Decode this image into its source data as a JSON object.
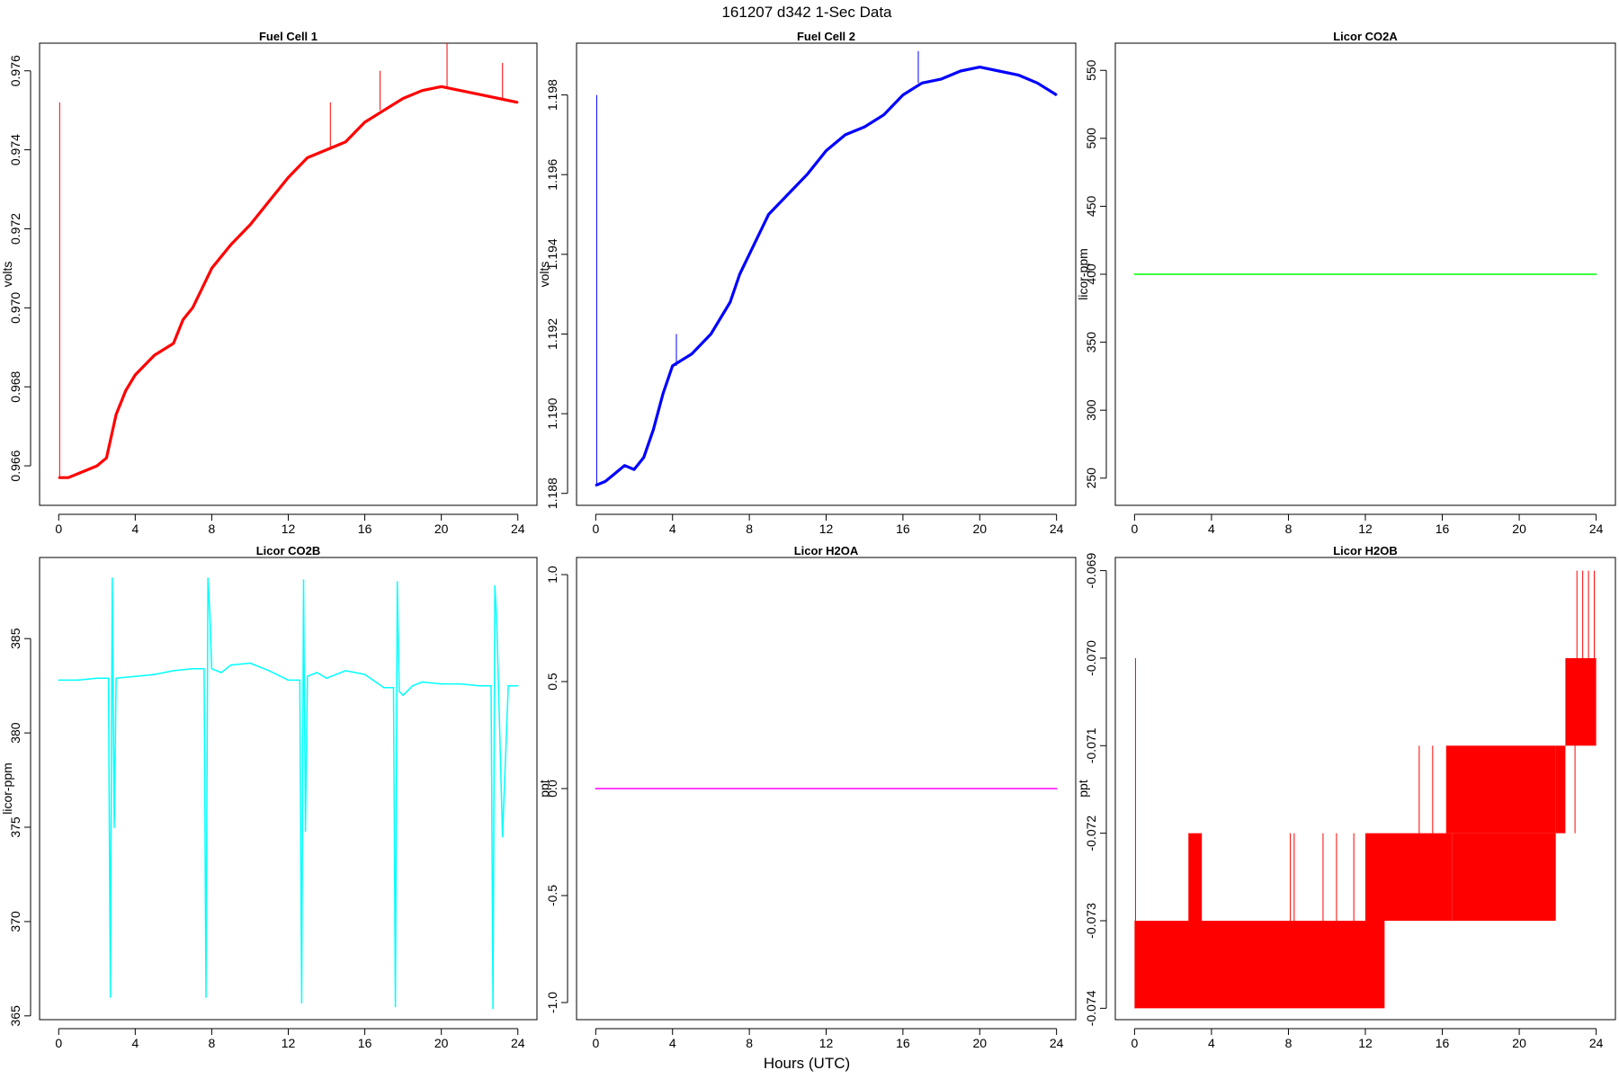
{
  "figure": {
    "title": "161207   d342   1-Sec Data",
    "xlabel": "Hours (UTC)"
  },
  "chart_data": [
    {
      "type": "line",
      "title": "Fuel Cell 1",
      "ylabel": "volts",
      "color": "#ff0000",
      "xlim": [
        -1,
        25
      ],
      "ylim": [
        0.965,
        0.9767
      ],
      "xticks": [
        0,
        4,
        8,
        12,
        16,
        20,
        24
      ],
      "yticks": [
        0.966,
        0.968,
        0.97,
        0.972,
        0.974,
        0.976
      ],
      "ytick_labels": [
        "0.966",
        "0.968",
        "0.970",
        "0.972",
        "0.974",
        "0.976"
      ],
      "x": [
        0.0,
        0.5,
        1.0,
        1.5,
        2.0,
        2.5,
        3.0,
        3.5,
        4.0,
        5.0,
        6.0,
        6.5,
        7.0,
        7.5,
        8.0,
        9.0,
        10.0,
        11.0,
        12.0,
        13.0,
        14.0,
        15.0,
        16.0,
        17.0,
        18.0,
        19.0,
        20.0,
        21.0,
        22.0,
        23.0,
        24.0
      ],
      "y": [
        0.9657,
        0.9657,
        0.9658,
        0.9659,
        0.966,
        0.9662,
        0.9673,
        0.9679,
        0.9683,
        0.9688,
        0.9691,
        0.9697,
        0.97,
        0.9705,
        0.971,
        0.9716,
        0.9721,
        0.9727,
        0.9733,
        0.9738,
        0.974,
        0.9742,
        0.9747,
        0.975,
        0.9753,
        0.9755,
        0.9756,
        0.9755,
        0.9754,
        0.9753,
        0.9752
      ],
      "spikes": [
        [
          0.05,
          0.9752
        ],
        [
          14.2,
          0.9752
        ],
        [
          16.8,
          0.976
        ],
        [
          20.3,
          0.9767
        ],
        [
          23.2,
          0.9762
        ]
      ]
    },
    {
      "type": "line",
      "title": "Fuel Cell 2",
      "ylabel": "volts",
      "color": "#0000ff",
      "xlim": [
        -1,
        25
      ],
      "ylim": [
        1.1877,
        1.1993
      ],
      "xticks": [
        0,
        4,
        8,
        12,
        16,
        20,
        24
      ],
      "yticks": [
        1.188,
        1.19,
        1.192,
        1.194,
        1.196,
        1.198
      ],
      "ytick_labels": [
        "1.188",
        "1.190",
        "1.192",
        "1.194",
        "1.196",
        "1.198"
      ],
      "x": [
        0.0,
        0.5,
        1.0,
        1.5,
        2.0,
        2.5,
        3.0,
        3.5,
        4.0,
        5.0,
        6.0,
        7.0,
        7.5,
        8.0,
        9.0,
        10.0,
        11.0,
        12.0,
        13.0,
        14.0,
        15.0,
        16.0,
        17.0,
        18.0,
        19.0,
        20.0,
        21.0,
        22.0,
        23.0,
        24.0
      ],
      "y": [
        1.1882,
        1.1883,
        1.1885,
        1.1887,
        1.1886,
        1.1889,
        1.1896,
        1.1905,
        1.1912,
        1.1915,
        1.192,
        1.1928,
        1.1935,
        1.194,
        1.195,
        1.1955,
        1.196,
        1.1966,
        1.197,
        1.1972,
        1.1975,
        1.198,
        1.1983,
        1.1984,
        1.1986,
        1.1987,
        1.1986,
        1.1985,
        1.1983,
        1.198
      ],
      "spikes": [
        [
          0.05,
          1.198
        ],
        [
          4.2,
          1.192
        ],
        [
          16.8,
          1.1991
        ]
      ]
    },
    {
      "type": "line",
      "title": "Licor CO2A",
      "ylabel": "licor-ppm",
      "color": "#00ff00",
      "xlim": [
        -1,
        25
      ],
      "ylim": [
        230,
        570
      ],
      "xticks": [
        0,
        4,
        8,
        12,
        16,
        20,
        24
      ],
      "yticks": [
        250,
        300,
        350,
        400,
        450,
        500,
        550
      ],
      "ytick_labels": [
        "250",
        "300",
        "350",
        "400",
        "450",
        "500",
        "550"
      ],
      "x": [
        0,
        24
      ],
      "y": [
        400,
        400
      ]
    },
    {
      "type": "line",
      "title": "Licor CO2B",
      "ylabel": "licor-ppm",
      "color": "#00ffff",
      "xlim": [
        -1,
        25
      ],
      "ylim": [
        364.8,
        389.3
      ],
      "xticks": [
        0,
        4,
        8,
        12,
        16,
        20,
        24
      ],
      "yticks": [
        365,
        370,
        375,
        380,
        385
      ],
      "ytick_labels": [
        "365",
        "370",
        "375",
        "380",
        "385"
      ],
      "x": [
        0.0,
        1.0,
        2.0,
        2.6,
        2.7,
        2.8,
        2.9,
        3.0,
        4.0,
        5.0,
        6.0,
        7.0,
        7.6,
        7.7,
        7.8,
        7.9,
        8.0,
        8.5,
        9.0,
        10.0,
        11.0,
        12.0,
        12.6,
        12.7,
        12.8,
        12.9,
        13.0,
        13.5,
        14.0,
        15.0,
        16.0,
        17.0,
        17.5,
        17.6,
        17.7,
        17.8,
        18.0,
        18.5,
        19.0,
        20.0,
        21.0,
        22.0,
        22.6,
        22.7,
        22.8,
        22.9,
        23.2,
        23.5,
        24.0
      ],
      "y": [
        382.8,
        382.8,
        382.9,
        382.9,
        366.0,
        388.2,
        375.0,
        382.9,
        383.0,
        383.1,
        383.3,
        383.4,
        383.4,
        366.0,
        388.2,
        386.3,
        383.4,
        383.2,
        383.6,
        383.7,
        383.3,
        382.8,
        382.8,
        365.7,
        388.1,
        374.8,
        383.0,
        383.2,
        382.9,
        383.3,
        383.1,
        382.4,
        382.4,
        365.5,
        388.0,
        382.2,
        382.0,
        382.5,
        382.7,
        382.6,
        382.6,
        382.5,
        382.5,
        365.4,
        387.8,
        385.9,
        374.5,
        382.5,
        382.5
      ]
    },
    {
      "type": "line",
      "title": "Licor H2OA",
      "ylabel": "ppt",
      "color": "#ff00ff",
      "xlim": [
        -1,
        25
      ],
      "ylim": [
        -1.08,
        1.08
      ],
      "xticks": [
        0,
        4,
        8,
        12,
        16,
        20,
        24
      ],
      "yticks": [
        -1.0,
        -0.5,
        0.0,
        0.5,
        1.0
      ],
      "ytick_labels": [
        "-1.0",
        "-0.5",
        "0.0",
        "0.5",
        "1.0"
      ],
      "x": [
        0,
        24
      ],
      "y": [
        0,
        0
      ]
    },
    {
      "type": "line",
      "title": "Licor H2OB",
      "ylabel": "ppt",
      "color": "#ff0000",
      "xlim": [
        -1,
        25
      ],
      "ylim": [
        -0.07413,
        -0.06885
      ],
      "xticks": [
        0,
        4,
        8,
        12,
        16,
        20,
        24
      ],
      "yticks": [
        -0.074,
        -0.073,
        -0.072,
        -0.071,
        -0.07,
        -0.069
      ],
      "ytick_labels": [
        "-0.074",
        "-0.073",
        "-0.072",
        "-0.071",
        "-0.070",
        "-0.069"
      ],
      "bands": [
        {
          "x": [
            0.0,
            13.0
          ],
          "y": [
            -0.074,
            -0.073
          ]
        },
        {
          "x": [
            2.8,
            3.5
          ],
          "y": [
            -0.073,
            -0.072
          ]
        },
        {
          "x": [
            12.0,
            16.5
          ],
          "y": [
            -0.073,
            -0.072
          ]
        },
        {
          "x": [
            16.2,
            21.9
          ],
          "y": [
            -0.072,
            -0.071
          ]
        },
        {
          "x": [
            16.5,
            21.9
          ],
          "y": [
            -0.073,
            -0.072
          ]
        },
        {
          "x": [
            21.9,
            22.4
          ],
          "y": [
            -0.072,
            -0.071
          ]
        },
        {
          "x": [
            22.4,
            24.0
          ],
          "y": [
            -0.071,
            -0.07
          ]
        }
      ],
      "spikes": [
        [
          0.05,
          -0.074,
          -0.07
        ],
        [
          8.1,
          -0.073,
          -0.072
        ],
        [
          8.3,
          -0.073,
          -0.072
        ],
        [
          9.8,
          -0.073,
          -0.072
        ],
        [
          10.5,
          -0.073,
          -0.072
        ],
        [
          11.4,
          -0.073,
          -0.072
        ],
        [
          14.8,
          -0.072,
          -0.071
        ],
        [
          15.5,
          -0.072,
          -0.071
        ],
        [
          22.9,
          -0.072,
          -0.071
        ],
        [
          23.0,
          -0.07,
          -0.069
        ],
        [
          23.3,
          -0.07,
          -0.069
        ],
        [
          23.6,
          -0.07,
          -0.069
        ],
        [
          23.9,
          -0.07,
          -0.069
        ]
      ]
    }
  ]
}
